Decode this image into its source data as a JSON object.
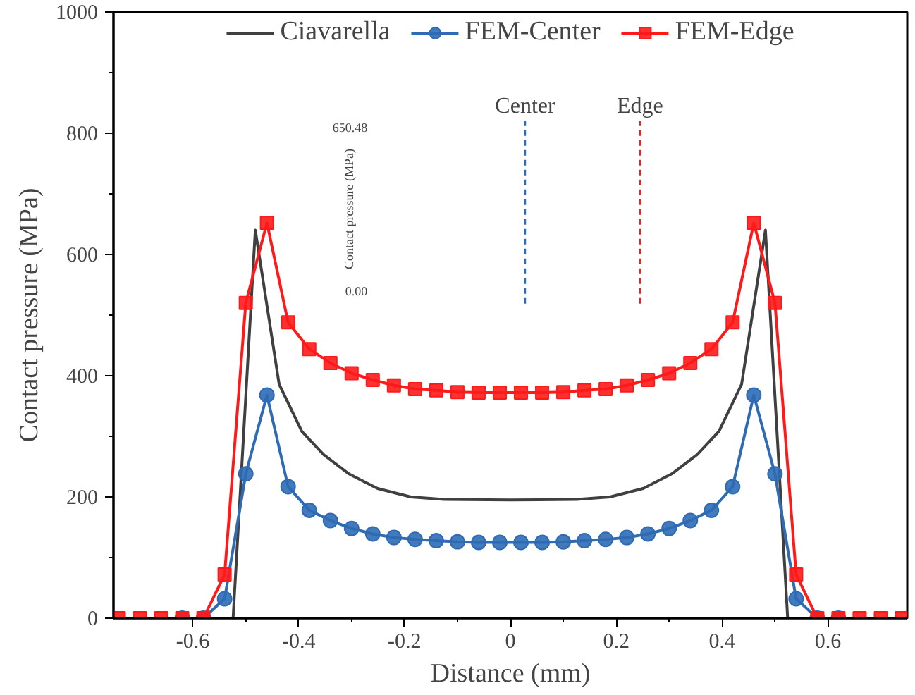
{
  "chart_data": {
    "type": "line",
    "xlabel": "Distance (mm)",
    "ylabel": "Contact pressure (MPa)",
    "xlim": [
      -0.75,
      0.75
    ],
    "ylim": [
      0,
      1000
    ],
    "xticks": [
      -0.6,
      -0.4,
      -0.2,
      0,
      0.2,
      0.4,
      0.6
    ],
    "yticks": [
      0,
      200,
      400,
      600,
      800,
      1000
    ],
    "grid": false,
    "legend": "top",
    "annotations": [
      "650.48",
      "0.00",
      "Contact pressure (MPa)",
      "Center",
      "Edge"
    ],
    "series": [
      {
        "name": "Ciavarella",
        "color": "#404040",
        "marker": "none",
        "x": [
          -0.75,
          -0.524,
          -0.482,
          -0.437,
          -0.394,
          -0.353,
          -0.305,
          -0.251,
          -0.188,
          -0.125,
          0,
          0.125,
          0.188,
          0.251,
          0.305,
          0.353,
          0.394,
          0.437,
          0.482,
          0.524,
          0.75
        ],
        "values": [
          0,
          0,
          640,
          386,
          308,
          270,
          238,
          214,
          200,
          196,
          195,
          196,
          200,
          214,
          238,
          270,
          308,
          386,
          640,
          0,
          0
        ]
      },
      {
        "name": "FEM-Center",
        "color": "#2e6bb4",
        "marker": "circle",
        "x": [
          -0.62,
          -0.58,
          -0.54,
          -0.5,
          -0.46,
          -0.42,
          -0.38,
          -0.34,
          -0.3,
          -0.26,
          -0.22,
          -0.18,
          -0.14,
          -0.1,
          -0.06,
          -0.02,
          0.02,
          0.06,
          0.1,
          0.14,
          0.18,
          0.22,
          0.26,
          0.3,
          0.34,
          0.38,
          0.42,
          0.46,
          0.5,
          0.54,
          0.58,
          0.62
        ],
        "values": [
          0,
          0,
          32,
          238,
          368,
          217,
          178,
          161,
          148,
          139,
          133,
          130,
          128,
          126,
          125,
          125,
          125,
          125,
          126,
          128,
          130,
          133,
          139,
          148,
          161,
          178,
          217,
          368,
          238,
          32,
          0,
          0
        ]
      },
      {
        "name": "FEM-Edge",
        "color": "#ff1a1a",
        "marker": "square",
        "x": [
          -0.74,
          -0.7,
          -0.66,
          -0.62,
          -0.58,
          -0.54,
          -0.5,
          -0.46,
          -0.42,
          -0.38,
          -0.34,
          -0.3,
          -0.26,
          -0.22,
          -0.18,
          -0.14,
          -0.1,
          -0.06,
          -0.02,
          0.02,
          0.06,
          0.1,
          0.14,
          0.18,
          0.22,
          0.26,
          0.3,
          0.34,
          0.38,
          0.42,
          0.46,
          0.5,
          0.54,
          0.58,
          0.62,
          0.66,
          0.7,
          0.74
        ],
        "values": [
          0,
          0,
          0,
          0,
          0,
          72,
          520,
          652,
          488,
          444,
          421,
          404,
          393,
          384,
          378,
          376,
          373,
          372,
          372,
          372,
          372,
          373,
          376,
          378,
          384,
          393,
          404,
          421,
          444,
          488,
          652,
          520,
          72,
          0,
          0,
          0,
          0,
          0
        ]
      }
    ]
  }
}
